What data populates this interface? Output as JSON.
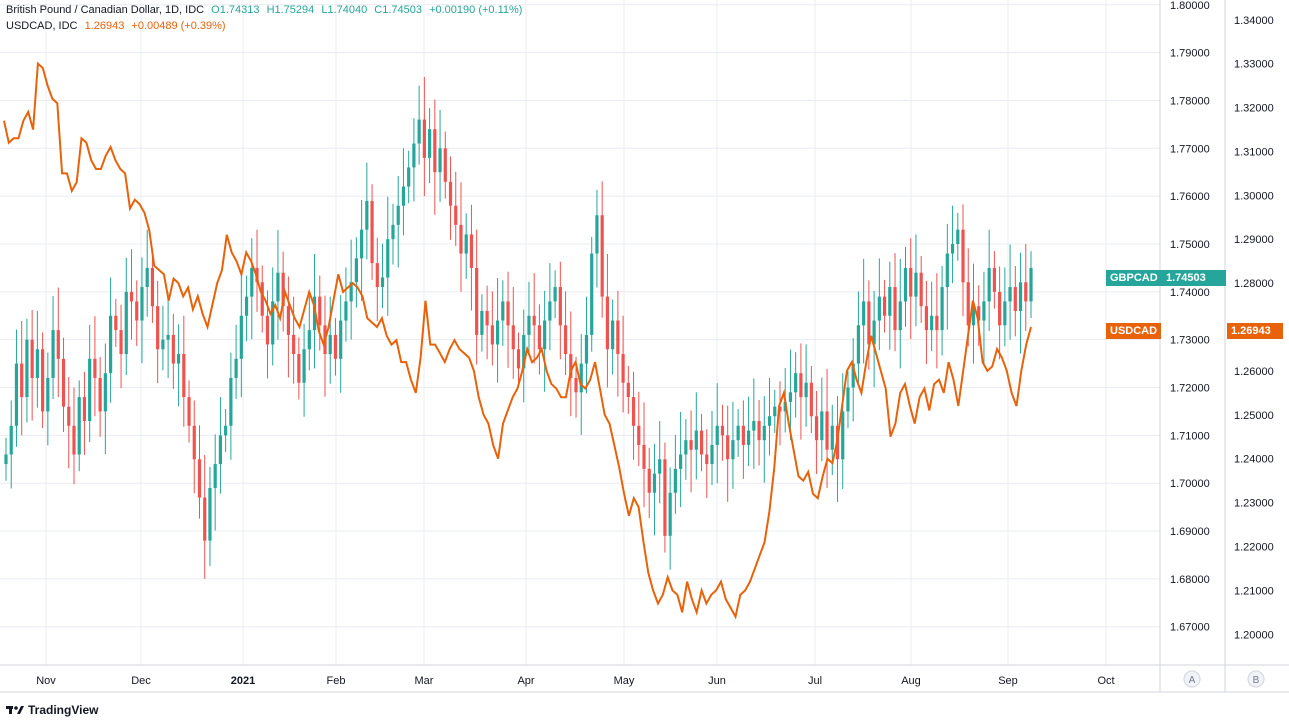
{
  "legend": {
    "primary": {
      "name": "British Pound / Canadian Dollar, 1D, IDC",
      "open": "O1.74313",
      "high": "H1.75294",
      "low": "L1.74040",
      "close": "C1.74503",
      "change": "+0.00190 (+0.11%)"
    },
    "secondary": {
      "name": "USDCAD, IDC",
      "value": "1.26943",
      "change": "+0.00489 (+0.39%)"
    }
  },
  "tags": {
    "gbpcad_label": "GBPCAD",
    "gbpcad_value": "1.74503",
    "usdcad_label": "USDCAD",
    "usdcad_value": "1.26943"
  },
  "scale_labels": {
    "a": "A",
    "b": "B"
  },
  "logo": {
    "brand": "TradingView"
  },
  "colors": {
    "up": "#26a69a",
    "down": "#ef5350",
    "line": "#e8620a",
    "grid": "#e9ecf2",
    "axis_text": "#131722",
    "gbp_tag": "#26a69a",
    "usd_tag": "#e8620a"
  },
  "chart_data": {
    "type": "candlestick+line",
    "title": "British Pound / Canadian Dollar, 1D, IDC",
    "x_tick_labels": [
      "Nov",
      "Dec",
      "2021",
      "Feb",
      "Mar",
      "Apr",
      "May",
      "Jun",
      "Jul",
      "Aug",
      "Sep",
      "Oct"
    ],
    "y_left_axis": {
      "series": "GBPCAD",
      "range": [
        1.662,
        1.801
      ],
      "ticks": [
        "1.80000",
        "1.79000",
        "1.78000",
        "1.77000",
        "1.76000",
        "1.75000",
        "1.74000",
        "1.73000",
        "1.72000",
        "1.71000",
        "1.70000",
        "1.69000",
        "1.68000",
        "1.67000"
      ]
    },
    "y_right_axis": {
      "series": "USDCAD",
      "range": [
        1.193,
        1.3445
      ],
      "ticks": [
        "1.34000",
        "1.33000",
        "1.32000",
        "1.31000",
        "1.30000",
        "1.29000",
        "1.28000",
        "1.27000",
        "1.26000",
        "1.25000",
        "1.24000",
        "1.23000",
        "1.22000",
        "1.21000",
        "1.20000"
      ]
    },
    "gbpcad_closes": [
      1.706,
      1.712,
      1.725,
      1.718,
      1.73,
      1.722,
      1.728,
      1.715,
      1.722,
      1.732,
      1.726,
      1.716,
      1.712,
      1.706,
      1.718,
      1.713,
      1.726,
      1.722,
      1.715,
      1.723,
      1.735,
      1.732,
      1.727,
      1.74,
      1.738,
      1.734,
      1.741,
      1.745,
      1.737,
      1.728,
      1.73,
      1.731,
      1.725,
      1.727,
      1.718,
      1.712,
      1.705,
      1.697,
      1.688,
      1.699,
      1.704,
      1.71,
      1.712,
      1.722,
      1.726,
      1.735,
      1.739,
      1.745,
      1.742,
      1.735,
      1.729,
      1.738,
      1.744,
      1.737,
      1.731,
      1.727,
      1.721,
      1.728,
      1.732,
      1.739,
      1.733,
      1.727,
      1.731,
      1.726,
      1.734,
      1.738,
      1.742,
      1.747,
      1.753,
      1.759,
      1.746,
      1.741,
      1.743,
      1.751,
      1.754,
      1.758,
      1.762,
      1.766,
      1.771,
      1.776,
      1.768,
      1.774,
      1.765,
      1.77,
      1.763,
      1.758,
      1.754,
      1.748,
      1.752,
      1.745,
      1.731,
      1.736,
      1.733,
      1.729,
      1.734,
      1.738,
      1.733,
      1.728,
      1.724,
      1.731,
      1.735,
      1.733,
      1.728,
      1.734,
      1.738,
      1.741,
      1.733,
      1.727,
      1.722,
      1.719,
      1.725,
      1.731,
      1.748,
      1.756,
      1.739,
      1.728,
      1.734,
      1.727,
      1.721,
      1.718,
      1.712,
      1.708,
      1.703,
      1.698,
      1.702,
      1.705,
      1.689,
      1.698,
      1.703,
      1.706,
      1.709,
      1.707,
      1.711,
      1.706,
      1.704,
      1.708,
      1.712,
      1.71,
      1.705,
      1.709,
      1.712,
      1.708,
      1.711,
      1.713,
      1.709,
      1.712,
      1.714,
      1.716,
      1.715,
      1.717,
      1.719,
      1.723,
      1.718,
      1.721,
      1.714,
      1.709,
      1.715,
      1.707,
      1.712,
      1.705,
      1.715,
      1.72,
      1.725,
      1.733,
      1.738,
      1.729,
      1.734,
      1.739,
      1.735,
      1.741,
      1.732,
      1.738,
      1.745,
      1.739,
      1.744,
      1.737,
      1.732,
      1.735,
      1.732,
      1.741,
      1.748,
      1.75,
      1.753,
      1.742,
      1.733,
      1.737,
      1.734,
      1.738,
      1.745,
      1.74,
      1.733,
      1.738,
      1.741,
      1.736,
      1.742,
      1.738,
      1.745
    ],
    "usdcad_closes": [
      1.317,
      1.312,
      1.313,
      1.313,
      1.317,
      1.319,
      1.315,
      1.33,
      1.329,
      1.325,
      1.322,
      1.321,
      1.305,
      1.305,
      1.301,
      1.303,
      1.313,
      1.312,
      1.308,
      1.306,
      1.306,
      1.309,
      1.311,
      1.308,
      1.306,
      1.305,
      1.297,
      1.299,
      1.298,
      1.296,
      1.292,
      1.284,
      1.283,
      1.282,
      1.276,
      1.281,
      1.28,
      1.277,
      1.279,
      1.274,
      1.277,
      1.273,
      1.27,
      1.275,
      1.28,
      1.283,
      1.291,
      1.287,
      1.285,
      1.282,
      1.287,
      1.285,
      1.282,
      1.278,
      1.276,
      1.273,
      1.275,
      1.272,
      1.278,
      1.275,
      1.272,
      1.27,
      1.274,
      1.278,
      1.275,
      1.269,
      1.266,
      1.27,
      1.276,
      1.282,
      1.278,
      1.279,
      1.28,
      1.279,
      1.277,
      1.272,
      1.271,
      1.27,
      1.272,
      1.268,
      1.266,
      1.267,
      1.262,
      1.262,
      1.258,
      1.255,
      1.263,
      1.276,
      1.266,
      1.266,
      1.264,
      1.262,
      1.265,
      1.267,
      1.265,
      1.264,
      1.263,
      1.26,
      1.254,
      1.25,
      1.248,
      1.243,
      1.24,
      1.248,
      1.251,
      1.254,
      1.256,
      1.26,
      1.265,
      1.262,
      1.263,
      1.265,
      1.26,
      1.257,
      1.256,
      1.254,
      1.254,
      1.26,
      1.262,
      1.257,
      1.256,
      1.258,
      1.262,
      1.256,
      1.25,
      1.248,
      1.243,
      1.238,
      1.232,
      1.227,
      1.231,
      1.229,
      1.221,
      1.214,
      1.21,
      1.207,
      1.209,
      1.213,
      1.21,
      1.209,
      1.205,
      1.212,
      1.208,
      1.205,
      1.21,
      1.207,
      1.209,
      1.21,
      1.212,
      1.208,
      1.206,
      1.204,
      1.209,
      1.21,
      1.212,
      1.215,
      1.218,
      1.221,
      1.228,
      1.238,
      1.252,
      1.255,
      1.248,
      1.242,
      1.236,
      1.235,
      1.237,
      1.232,
      1.231,
      1.236,
      1.24,
      1.239,
      1.244,
      1.252,
      1.26,
      1.262,
      1.258,
      1.255,
      1.262,
      1.268,
      1.264,
      1.26,
      1.256,
      1.245,
      1.248,
      1.255,
      1.257,
      1.252,
      1.248,
      1.254,
      1.256,
      1.251,
      1.257,
      1.258,
      1.255,
      1.262,
      1.258,
      1.252,
      1.26,
      1.268,
      1.276,
      1.272,
      1.262,
      1.26,
      1.261,
      1.265,
      1.263,
      1.26,
      1.255,
      1.252,
      1.26,
      1.266,
      1.27
    ]
  }
}
